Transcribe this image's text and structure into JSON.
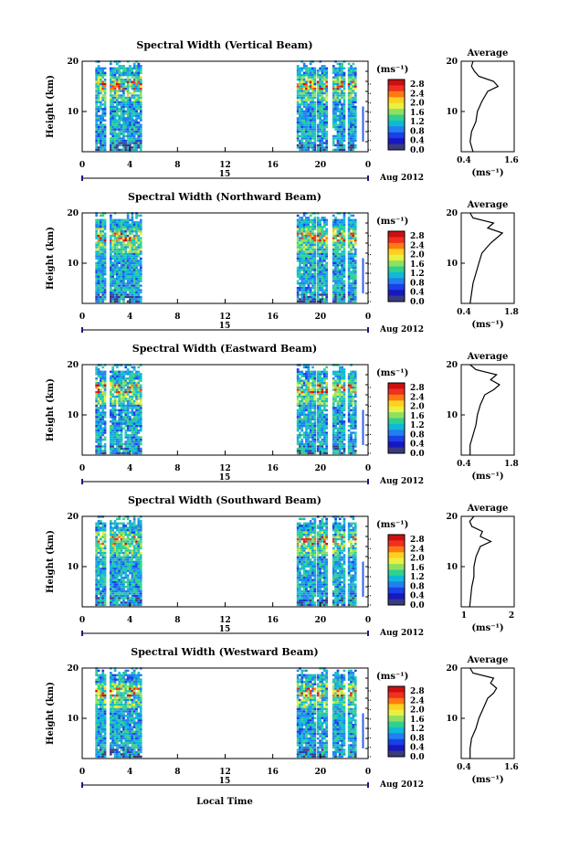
{
  "figure": {
    "xlabel": "Local Time",
    "xticks": [
      "0",
      "4",
      "8",
      "12",
      "16",
      "20",
      "0"
    ],
    "date_day": "15",
    "date_month": "Aug 2012",
    "colorbar_unit": "(ms⁻¹)",
    "colorbar_ticks": [
      "2.8",
      "2.4",
      "2.0",
      "1.6",
      "1.2",
      "0.8",
      "0.4",
      "0.0"
    ],
    "colorbar_colors": [
      "#cc1010",
      "#f03020",
      "#ff7a10",
      "#ffd020",
      "#e8f040",
      "#90e060",
      "#30d090",
      "#10b8d8",
      "#2080f0",
      "#1a40e8",
      "#1818c0",
      "#3a3a80"
    ],
    "yticks": [
      "20",
      "10"
    ],
    "ylabel": "Height (km)",
    "avg_title": "Average",
    "avg_unit": "(ms⁻¹)"
  },
  "chart_data": [
    {
      "type": "heatmap",
      "title": "Spectral Width (Vertical Beam)",
      "ylabel": "Height (km)",
      "xlabel": "Local Time",
      "ylim": [
        2,
        20
      ],
      "xlim": [
        0,
        24
      ],
      "data_periods": [
        [
          1.1,
          1.9
        ],
        [
          2.3,
          5.0
        ],
        [
          18.0,
          19.5
        ],
        [
          19.7,
          20.5
        ],
        [
          21.0,
          22.0
        ],
        [
          22.3,
          23.0
        ]
      ],
      "profile": {
        "title": "Average",
        "xlabel": "(ms⁻¹)",
        "xticks": [
          "0.4",
          "1.6"
        ],
        "xlim": [
          0.2,
          2.0
        ],
        "heights": [
          2,
          4,
          6,
          8,
          10,
          12,
          14,
          15,
          16,
          17,
          18,
          19,
          20
        ],
        "values": [
          0.6,
          0.5,
          0.55,
          0.7,
          0.75,
          0.9,
          1.1,
          1.45,
          1.3,
          0.8,
          0.65,
          0.55,
          0.6
        ]
      }
    },
    {
      "type": "heatmap",
      "title": "Spectral Width (Northward Beam)",
      "ylabel": "Height (km)",
      "xlabel": "Local Time",
      "ylim": [
        2,
        20
      ],
      "xlim": [
        0,
        24
      ],
      "data_periods": [
        [
          1.1,
          1.9
        ],
        [
          2.3,
          5.0
        ],
        [
          18.0,
          19.5
        ],
        [
          19.7,
          20.5
        ],
        [
          21.0,
          22.0
        ],
        [
          22.3,
          23.0
        ]
      ],
      "profile": {
        "title": "Average",
        "xlabel": "(ms⁻¹)",
        "xticks": [
          "0.4",
          "1.8"
        ],
        "xlim": [
          0.2,
          2.0
        ],
        "heights": [
          2,
          4,
          6,
          8,
          10,
          12,
          14,
          15,
          16,
          17,
          18,
          19,
          20
        ],
        "values": [
          0.5,
          0.55,
          0.6,
          0.7,
          0.8,
          0.9,
          1.2,
          1.4,
          1.6,
          1.1,
          1.3,
          0.6,
          0.5
        ]
      }
    },
    {
      "type": "heatmap",
      "title": "Spectral Width (Eastward Beam)",
      "ylabel": "Height (km)",
      "xlabel": "Local Time",
      "ylim": [
        2,
        20
      ],
      "xlim": [
        0,
        24
      ],
      "data_periods": [
        [
          1.1,
          1.9
        ],
        [
          2.3,
          5.0
        ],
        [
          18.0,
          19.5
        ],
        [
          19.7,
          20.5
        ],
        [
          21.0,
          22.0
        ],
        [
          22.3,
          23.0
        ]
      ],
      "profile": {
        "title": "Average",
        "xlabel": "(ms⁻¹)",
        "xticks": [
          "0.4",
          "1.8"
        ],
        "xlim": [
          0.2,
          2.0
        ],
        "heights": [
          2,
          4,
          6,
          8,
          10,
          12,
          14,
          15,
          16,
          17,
          18,
          19,
          20
        ],
        "values": [
          0.5,
          0.5,
          0.6,
          0.7,
          0.75,
          0.85,
          1.0,
          1.3,
          1.5,
          1.2,
          1.4,
          0.7,
          0.5
        ]
      }
    },
    {
      "type": "heatmap",
      "title": "Spectral Width (Southward Beam)",
      "ylabel": "Height (km)",
      "xlabel": "Local Time",
      "ylim": [
        2,
        20
      ],
      "xlim": [
        0,
        24
      ],
      "data_periods": [
        [
          1.1,
          1.9
        ],
        [
          2.3,
          5.0
        ],
        [
          18.0,
          19.5
        ],
        [
          19.7,
          20.5
        ],
        [
          21.0,
          22.0
        ],
        [
          22.3,
          23.0
        ]
      ],
      "profile": {
        "title": "Average",
        "xlabel": "(ms⁻¹)",
        "xticks": [
          "1",
          "2"
        ],
        "xlim": [
          0.5,
          3.0
        ],
        "heights": [
          2,
          4,
          6,
          8,
          10,
          12,
          14,
          15,
          16,
          17,
          18,
          19,
          20
        ],
        "values": [
          0.9,
          0.95,
          1.0,
          1.1,
          1.1,
          1.2,
          1.4,
          1.9,
          1.4,
          1.5,
          1.0,
          0.9,
          1.1
        ]
      }
    },
    {
      "type": "heatmap",
      "title": "Spectral Width (Westward Beam)",
      "ylabel": "Height (km)",
      "xlabel": "Local Time",
      "ylim": [
        2,
        20
      ],
      "xlim": [
        0,
        24
      ],
      "data_periods": [
        [
          1.1,
          1.9
        ],
        [
          2.3,
          5.0
        ],
        [
          18.0,
          19.5
        ],
        [
          19.7,
          20.5
        ],
        [
          21.0,
          22.0
        ],
        [
          22.3,
          23.0
        ]
      ],
      "profile": {
        "title": "Average",
        "xlabel": "(ms⁻¹)",
        "xticks": [
          "0.4",
          "1.6"
        ],
        "xlim": [
          0.2,
          2.0
        ],
        "heights": [
          2,
          4,
          6,
          8,
          10,
          12,
          14,
          15,
          16,
          17,
          18,
          19,
          20
        ],
        "values": [
          0.5,
          0.5,
          0.55,
          0.7,
          0.8,
          0.95,
          1.1,
          1.3,
          1.4,
          1.2,
          1.3,
          0.6,
          0.5
        ]
      }
    }
  ]
}
